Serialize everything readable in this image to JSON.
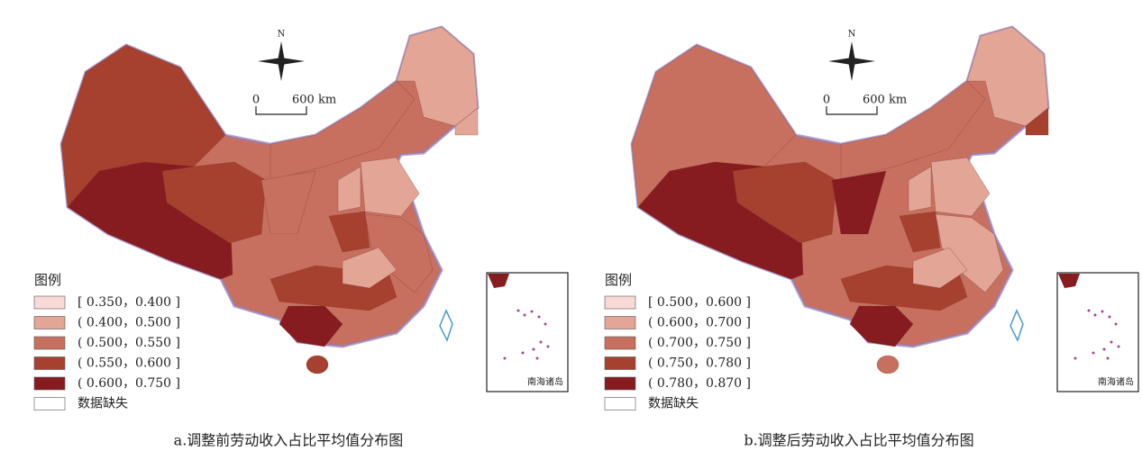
{
  "panels": [
    {
      "caption": "a.调整前劳动收入占比平均值分布图",
      "legend": {
        "title": "图例",
        "items": [
          {
            "label": "[ 0.350，0.400 ]",
            "color": "#f8d9d6"
          },
          {
            "label": "( 0.400，0.500 ]",
            "color": "#e2a596"
          },
          {
            "label": "( 0.500，0.550 ]",
            "color": "#c8705f"
          },
          {
            "label": "( 0.550，0.600 ]",
            "color": "#a6402f"
          },
          {
            "label": "( 0.600，0.750 ]",
            "color": "#861b20"
          }
        ],
        "missing": "数据缺失"
      },
      "north": "N",
      "scale_start": "0",
      "scale_end": "600 km",
      "inset_label": "南海诸岛"
    },
    {
      "caption": "b.调整后劳动收入占比平均值分布图",
      "legend": {
        "title": "图例",
        "items": [
          {
            "label": "[ 0.500，0.600 ]",
            "color": "#f8d9d6"
          },
          {
            "label": "( 0.600，0.700 ]",
            "color": "#e2a596"
          },
          {
            "label": "( 0.700，0.750 ]",
            "color": "#c8705f"
          },
          {
            "label": "( 0.750，0.780 ]",
            "color": "#a6402f"
          },
          {
            "label": "( 0.780，0.870 ]",
            "color": "#861b20"
          }
        ],
        "missing": "数据缺失"
      },
      "north": "N",
      "scale_start": "0",
      "scale_end": "600 km",
      "inset_label": "南海诸岛"
    }
  ]
}
